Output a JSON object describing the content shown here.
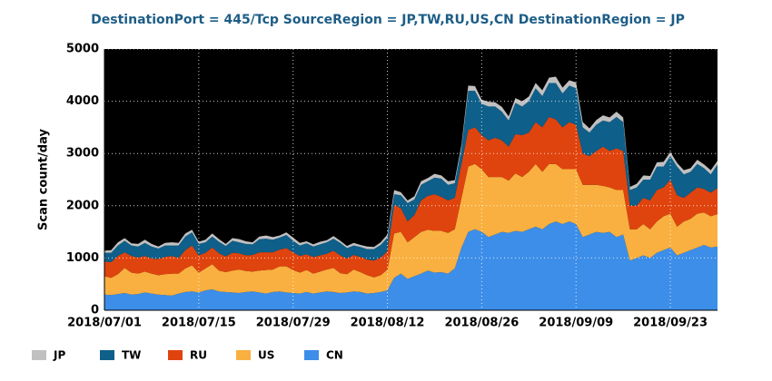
{
  "chart_data": {
    "type": "stacked-area",
    "title": "DestinationPort = 445/Tcp SourceRegion = JP,TW,RU,US,CN DestinationRegion = JP",
    "y_label": "Scan count/day",
    "x": [
      "2018/07/01",
      "2018/07/02",
      "2018/07/03",
      "2018/07/04",
      "2018/07/05",
      "2018/07/06",
      "2018/07/07",
      "2018/07/08",
      "2018/07/09",
      "2018/07/10",
      "2018/07/11",
      "2018/07/12",
      "2018/07/13",
      "2018/07/14",
      "2018/07/15",
      "2018/07/16",
      "2018/07/17",
      "2018/07/18",
      "2018/07/19",
      "2018/07/20",
      "2018/07/21",
      "2018/07/22",
      "2018/07/23",
      "2018/07/24",
      "2018/07/25",
      "2018/07/26",
      "2018/07/27",
      "2018/07/28",
      "2018/07/29",
      "2018/07/30",
      "2018/07/31",
      "2018/08/01",
      "2018/08/02",
      "2018/08/03",
      "2018/08/04",
      "2018/08/05",
      "2018/08/06",
      "2018/08/07",
      "2018/08/08",
      "2018/08/09",
      "2018/08/10",
      "2018/08/11",
      "2018/08/12",
      "2018/08/13",
      "2018/08/14",
      "2018/08/15",
      "2018/08/16",
      "2018/08/17",
      "2018/08/18",
      "2018/08/19",
      "2018/08/20",
      "2018/08/21",
      "2018/08/22",
      "2018/08/23",
      "2018/08/24",
      "2018/08/25",
      "2018/08/26",
      "2018/08/27",
      "2018/08/28",
      "2018/08/29",
      "2018/08/30",
      "2018/08/31",
      "2018/09/01",
      "2018/09/02",
      "2018/09/03",
      "2018/09/04",
      "2018/09/05",
      "2018/09/06",
      "2018/09/07",
      "2018/09/08",
      "2018/09/09",
      "2018/09/10",
      "2018/09/11",
      "2018/09/12",
      "2018/09/13",
      "2018/09/14",
      "2018/09/15",
      "2018/09/16",
      "2018/09/17",
      "2018/09/18",
      "2018/09/19",
      "2018/09/20",
      "2018/09/21",
      "2018/09/22",
      "2018/09/23",
      "2018/09/24",
      "2018/09/25",
      "2018/09/26",
      "2018/09/27",
      "2018/09/28",
      "2018/09/29",
      "2018/09/30"
    ],
    "xticks": [
      "2018/07/01",
      "2018/07/15",
      "2018/07/29",
      "2018/08/12",
      "2018/08/26",
      "2018/09/09",
      "2018/09/23"
    ],
    "ylim": [
      0,
      5000
    ],
    "yticks": [
      0,
      1000,
      2000,
      3000,
      4000,
      5000
    ],
    "grid": true,
    "series": [
      {
        "name": "JP",
        "color": "#c0c0c0",
        "values": [
          40,
          50,
          60,
          50,
          40,
          50,
          60,
          50,
          40,
          50,
          60,
          50,
          60,
          50,
          40,
          50,
          60,
          50,
          40,
          50,
          60,
          50,
          40,
          50,
          60,
          50,
          40,
          50,
          60,
          50,
          40,
          40,
          50,
          40,
          50,
          40,
          40,
          50,
          40,
          50,
          40,
          50,
          60,
          80,
          60,
          50,
          60,
          70,
          60,
          70,
          60,
          70,
          60,
          70,
          100,
          90,
          80,
          90,
          80,
          90,
          80,
          90,
          100,
          90,
          100,
          110,
          100,
          120,
          110,
          100,
          110,
          100,
          80,
          90,
          100,
          90,
          100,
          90,
          60,
          70,
          80,
          70,
          80,
          90,
          80,
          70,
          80,
          70,
          80,
          70,
          80,
          70
        ]
      },
      {
        "name": "TW",
        "color": "#0e5f8a",
        "values": [
          170,
          180,
          200,
          220,
          200,
          210,
          250,
          230,
          200,
          220,
          200,
          240,
          260,
          250,
          220,
          200,
          210,
          220,
          200,
          230,
          210,
          220,
          200,
          250,
          260,
          240,
          230,
          250,
          220,
          200,
          210,
          200,
          210,
          220,
          230,
          240,
          200,
          180,
          190,
          200,
          220,
          240,
          260,
          200,
          250,
          350,
          300,
          300,
          280,
          320,
          350,
          300,
          280,
          300,
          750,
          700,
          600,
          650,
          600,
          550,
          500,
          600,
          550,
          600,
          650,
          600,
          650,
          700,
          650,
          700,
          700,
          500,
          450,
          500,
          500,
          550,
          600,
          550,
          300,
          350,
          350,
          400,
          450,
          400,
          450,
          550,
          450,
          400,
          450,
          400,
          350,
          450
        ]
      },
      {
        "name": "RU",
        "color": "#e0440e",
        "values": [
          280,
          300,
          350,
          300,
          320,
          310,
          300,
          290,
          310,
          330,
          340,
          300,
          350,
          380,
          330,
          300,
          320,
          330,
          300,
          340,
          310,
          300,
          320,
          350,
          340,
          330,
          320,
          350,
          340,
          320,
          300,
          320,
          310,
          300,
          330,
          340,
          300,
          280,
          290,
          300,
          320,
          340,
          350,
          550,
          450,
          400,
          420,
          600,
          650,
          700,
          650,
          620,
          600,
          650,
          700,
          700,
          650,
          700,
          750,
          700,
          650,
          750,
          800,
          750,
          800,
          850,
          900,
          850,
          800,
          900,
          850,
          600,
          550,
          650,
          750,
          700,
          800,
          750,
          450,
          450,
          500,
          550,
          600,
          550,
          650,
          600,
          450,
          500,
          500,
          450,
          450,
          500
        ]
      },
      {
        "name": "US",
        "color": "#f9b040",
        "values": [
          350,
          330,
          380,
          480,
          420,
          390,
          400,
          380,
          370,
          400,
          420,
          380,
          450,
          500,
          380,
          420,
          480,
          400,
          380,
          420,
          450,
          400,
          380,
          420,
          450,
          430,
          480,
          500,
          440,
          400,
          420,
          380,
          400,
          420,
          460,
          380,
          350,
          420,
          380,
          350,
          300,
          320,
          400,
          850,
          800,
          700,
          750,
          800,
          780,
          800,
          790,
          780,
          750,
          950,
          1250,
          1250,
          1200,
          1150,
          1100,
          1050,
          1000,
          1100,
          1050,
          1100,
          1200,
          1100,
          1150,
          1100,
          1050,
          1000,
          1050,
          1000,
          950,
          900,
          900,
          850,
          900,
          850,
          600,
          550,
          600,
          550,
          600,
          650,
          650,
          550,
          600,
          600,
          650,
          620,
          600,
          620
        ]
      },
      {
        "name": "CN",
        "color": "#3d8ee8",
        "values": [
          300,
          290,
          310,
          330,
          300,
          310,
          340,
          320,
          300,
          290,
          280,
          320,
          350,
          360,
          340,
          380,
          400,
          360,
          350,
          340,
          330,
          350,
          360,
          340,
          320,
          350,
          360,
          340,
          330,
          320,
          350,
          320,
          340,
          360,
          350,
          330,
          340,
          360,
          350,
          320,
          330,
          350,
          380,
          620,
          700,
          600,
          650,
          700,
          760,
          720,
          730,
          700,
          800,
          1200,
          1500,
          1550,
          1500,
          1400,
          1450,
          1500,
          1480,
          1520,
          1500,
          1550,
          1600,
          1550,
          1650,
          1700,
          1650,
          1700,
          1650,
          1400,
          1450,
          1500,
          1480,
          1500,
          1400,
          1450,
          950,
          1000,
          1050,
          1000,
          1100,
          1150,
          1200,
          1050,
          1100,
          1150,
          1200,
          1250,
          1200,
          1220
        ]
      }
    ]
  }
}
